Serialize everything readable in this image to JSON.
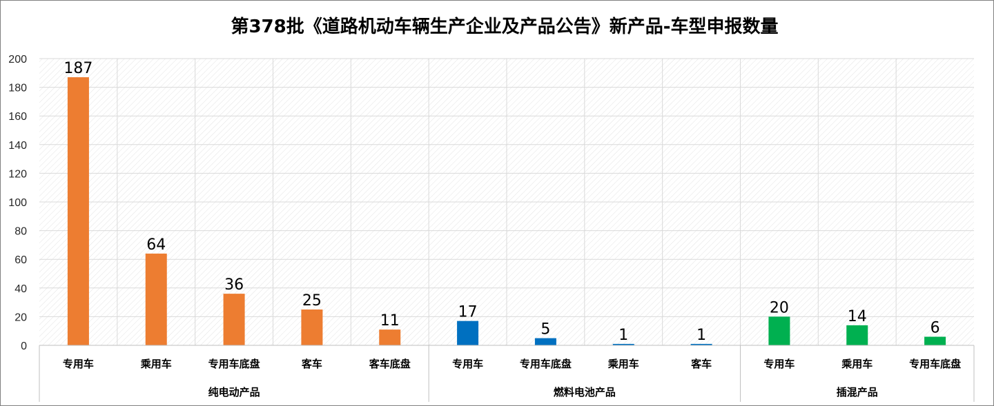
{
  "chart_data": {
    "type": "bar",
    "title": "第378批《道路机动车辆生产企业及产品公告》新产品-车型申报数量",
    "xlabel": "",
    "ylabel": "",
    "ylim": [
      0,
      200
    ],
    "yticks": [
      0,
      20,
      40,
      60,
      80,
      100,
      120,
      140,
      160,
      180,
      200
    ],
    "grid": true,
    "legend": "none",
    "groups": [
      {
        "label": "纯电动产品",
        "color": "#ED7D31",
        "categories": [
          "专用车",
          "乘用车",
          "专用车底盘",
          "客车",
          "客车底盘"
        ],
        "values": [
          187,
          64,
          36,
          25,
          11
        ]
      },
      {
        "label": "燃料电池产品",
        "color": "#0070C0",
        "categories": [
          "专用车",
          "专用车底盘",
          "乘用车",
          "客车"
        ],
        "values": [
          17,
          5,
          1,
          1
        ]
      },
      {
        "label": "插混产品",
        "color": "#00B050",
        "categories": [
          "专用车",
          "乘用车",
          "专用车底盘"
        ],
        "values": [
          20,
          14,
          6
        ]
      }
    ]
  }
}
